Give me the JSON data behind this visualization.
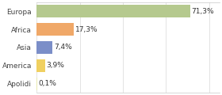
{
  "categories": [
    "Europa",
    "Africa",
    "Asia",
    "America",
    "Apolidi"
  ],
  "values": [
    71.3,
    17.3,
    7.4,
    3.9,
    0.1
  ],
  "labels": [
    "71,3%",
    "17,3%",
    "7,4%",
    "3,9%",
    "0,1%"
  ],
  "bar_colors": [
    "#b5c98e",
    "#f0a868",
    "#7b8ec8",
    "#f0d060",
    "#e8e8b0"
  ],
  "background_color": "#ffffff",
  "xlim": [
    0,
    85
  ],
  "bar_height": 0.72,
  "label_fontsize": 6.5,
  "tick_fontsize": 6.5,
  "grid_color": "#d8d8d8",
  "spine_color": "#c8c8c8"
}
